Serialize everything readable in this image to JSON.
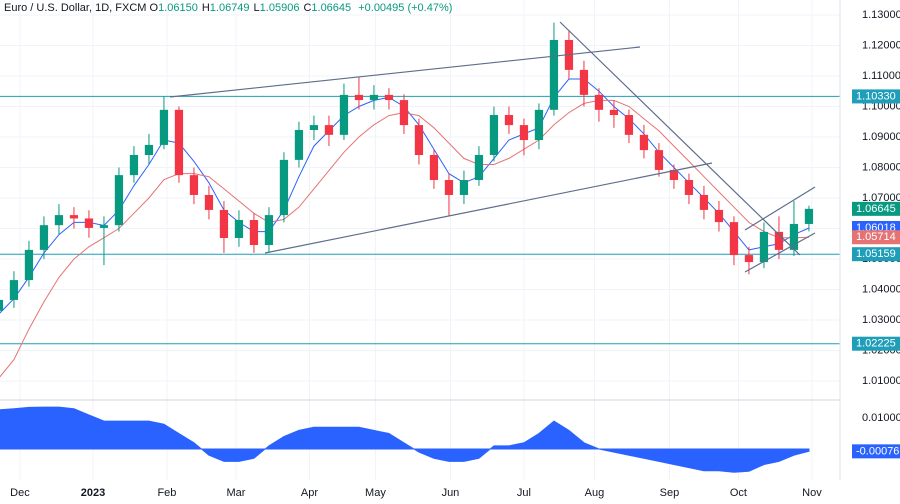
{
  "header": {
    "symbol": "Euro / U.S. Dollar, 1D, FXCM",
    "ohlc": [
      {
        "label": "O",
        "value": "1.06150"
      },
      {
        "label": "H",
        "value": "1.06749"
      },
      {
        "label": "L",
        "value": "1.05906"
      },
      {
        "label": "C",
        "value": "1.06645"
      }
    ],
    "change": "+0.00495 (+0.47%)"
  },
  "chart_data": {
    "type": "candlestick",
    "open": [
      1.033,
      1.0366,
      1.0431,
      1.053,
      1.0611,
      1.0644,
      1.0633,
      1.0602,
      1.0611,
      1.0775,
      1.0841,
      1.0874,
      1.0989,
      1.0775,
      1.071,
      1.0661,
      1.0569,
      1.0628,
      1.0546,
      1.0644,
      1.0825,
      1.0923,
      1.0939,
      1.0907,
      1.1038,
      1.1021,
      1.1038,
      1.1021,
      1.0939,
      1.0841,
      1.0759,
      1.071,
      1.0759,
      1.0841,
      1.0972,
      1.0939,
      1.089,
      1.0989,
      1.1218,
      1.112,
      1.1038,
      1.0989,
      1.0972,
      1.0907,
      1.0857,
      1.0792,
      1.0759,
      1.071,
      1.0661,
      1.0621,
      1.0513,
      1.049,
      1.0589,
      1.053,
      1.0615
    ],
    "high": [
      1.0395,
      1.046,
      1.056,
      1.064,
      1.068,
      1.067,
      1.066,
      1.064,
      1.08,
      1.087,
      1.091,
      1.1033,
      1.1,
      1.08,
      1.074,
      1.069,
      1.066,
      1.065,
      1.067,
      1.085,
      1.095,
      1.097,
      1.097,
      1.1075,
      1.1095,
      1.107,
      1.106,
      1.104,
      1.096,
      1.086,
      1.078,
      1.079,
      1.087,
      1.1,
      1.1,
      1.096,
      1.101,
      1.1275,
      1.125,
      1.115,
      1.106,
      1.102,
      1.099,
      1.094,
      1.088,
      1.081,
      1.078,
      1.074,
      1.069,
      1.064,
      1.054,
      1.062,
      1.064,
      1.069,
      1.06749
    ],
    "low": [
      1.03,
      1.034,
      1.041,
      1.05,
      1.058,
      1.06,
      1.057,
      1.048,
      1.059,
      1.075,
      1.081,
      1.086,
      1.075,
      1.068,
      1.063,
      1.052,
      1.054,
      1.052,
      1.052,
      1.062,
      1.08,
      1.089,
      1.087,
      1.089,
      1.099,
      1.099,
      1.099,
      1.091,
      1.081,
      1.073,
      1.064,
      1.068,
      1.074,
      1.082,
      1.091,
      1.084,
      1.086,
      1.097,
      1.109,
      1.1,
      1.095,
      1.093,
      1.088,
      1.083,
      1.077,
      1.073,
      1.068,
      1.063,
      1.059,
      1.048,
      1.045,
      1.047,
      1.05,
      1.051,
      1.05906
    ],
    "close": [
      1.0366,
      1.0431,
      1.053,
      1.0611,
      1.0644,
      1.0633,
      1.0602,
      1.0611,
      1.0775,
      1.0841,
      1.0874,
      1.0989,
      1.0775,
      1.071,
      1.0661,
      1.0569,
      1.0628,
      1.0546,
      1.0644,
      1.0825,
      1.0923,
      1.0939,
      1.0907,
      1.1038,
      1.1021,
      1.1038,
      1.1021,
      1.0939,
      1.0841,
      1.0759,
      1.071,
      1.0759,
      1.0841,
      1.0972,
      1.0939,
      1.089,
      1.0989,
      1.1218,
      1.112,
      1.1038,
      1.0989,
      1.0972,
      1.0907,
      1.0857,
      1.0792,
      1.0759,
      1.071,
      1.0661,
      1.0621,
      1.0513,
      1.049,
      1.0589,
      1.053,
      1.0615,
      1.06645
    ],
    "up_color": "#089981",
    "down_color": "#f23645",
    "ylim": [
      1.0038,
      1.1349
    ],
    "yticks": [
      {
        "value": 1.13,
        "label": "1.13000"
      },
      {
        "value": 1.12,
        "label": "1.12000"
      },
      {
        "value": 1.11,
        "label": "1.11000"
      },
      {
        "value": 1.1,
        "label": "1.10000"
      },
      {
        "value": 1.09,
        "label": "1.09000"
      },
      {
        "value": 1.08,
        "label": "1.08000"
      },
      {
        "value": 1.07,
        "label": "1.07000"
      },
      {
        "value": 1.06,
        "label": "1.06000"
      },
      {
        "value": 1.05,
        "label": "1.05000"
      },
      {
        "value": 1.04,
        "label": "1.04000"
      },
      {
        "value": 1.03,
        "label": "1.03000"
      },
      {
        "value": 1.02,
        "label": "1.02000"
      },
      {
        "value": 1.01,
        "label": "1.01000"
      }
    ],
    "xlim": [
      0.07,
      56.07
    ],
    "xticks": [
      {
        "value": 1.4,
        "label": "Dec"
      },
      {
        "value": 6.27,
        "label": "2023"
      },
      {
        "value": 11.2,
        "label": "Feb"
      },
      {
        "value": 15.8,
        "label": "Mar"
      },
      {
        "value": 20.7,
        "label": "Apr"
      },
      {
        "value": 25.1,
        "label": "May"
      },
      {
        "value": 30.1,
        "label": "Jun"
      },
      {
        "value": 35,
        "label": "Jul"
      },
      {
        "value": 39.7,
        "label": "Aug"
      },
      {
        "value": 44.7,
        "label": "Sep"
      },
      {
        "value": 49.3,
        "label": "Oct"
      },
      {
        "value": 54.2,
        "label": "Nov"
      }
    ],
    "moving_averages": [
      {
        "color": "#2962ff",
        "values": [
          1.032,
          1.037,
          1.044,
          1.052,
          1.058,
          1.062,
          1.062,
          1.061,
          1.066,
          1.074,
          1.081,
          1.089,
          1.088,
          1.082,
          1.075,
          1.066,
          1.062,
          1.059,
          1.059,
          1.066,
          1.077,
          1.087,
          1.092,
          1.097,
          1.1,
          1.102,
          1.103,
          1.1,
          1.094,
          1.086,
          1.078,
          1.075,
          1.077,
          1.083,
          1.089,
          1.091,
          1.093,
          1.103,
          1.109,
          1.109,
          1.105,
          1.1,
          1.096,
          1.091,
          1.085,
          1.08,
          1.075,
          1.07,
          1.065,
          1.059,
          1.053,
          1.054,
          1.055,
          1.058,
          1.06018
        ]
      },
      {
        "color": "#e57373",
        "values": [
          1.011,
          1.017,
          1.027,
          1.036,
          1.044,
          1.05,
          1.054,
          1.057,
          1.06,
          1.065,
          1.07,
          1.076,
          1.078,
          1.078,
          1.077,
          1.073,
          1.069,
          1.065,
          1.062,
          1.063,
          1.067,
          1.073,
          1.079,
          1.085,
          1.09,
          1.094,
          1.097,
          1.098,
          1.097,
          1.093,
          1.088,
          1.083,
          1.081,
          1.081,
          1.083,
          1.086,
          1.089,
          1.094,
          1.098,
          1.101,
          1.102,
          1.102,
          1.1,
          1.096,
          1.092,
          1.087,
          1.082,
          1.077,
          1.072,
          1.067,
          1.062,
          1.059,
          1.057,
          1.057,
          1.05714
        ]
      }
    ],
    "levels": [
      {
        "value": 1.1033,
        "label": "1.10330"
      },
      {
        "value": 1.05159,
        "label": "1.05159"
      },
      {
        "value": 1.02225,
        "label": "1.02225"
      }
    ],
    "level_color": "#1e9eb8",
    "oscillator": {
      "type": "area",
      "color": "#2962ff",
      "values": [
        0.0126,
        0.013,
        0.0134,
        0.0135,
        0.0135,
        0.013,
        0.011,
        0.009,
        0.009,
        0.009,
        0.009,
        0.008,
        0.005,
        0.002,
        -0.002,
        -0.004,
        -0.004,
        -0.003,
        0.001,
        0.004,
        0.006,
        0.007,
        0.007,
        0.007,
        0.007,
        0.006,
        0.005,
        0.002,
        -0.001,
        -0.003,
        -0.004,
        -0.004,
        -0.003,
        0.001,
        0.001,
        0.002,
        0.005,
        0.009,
        0.006,
        0.002,
        0.0,
        -0.001,
        -0.002,
        -0.003,
        -0.004,
        -0.005,
        -0.006,
        -0.007,
        -0.007,
        -0.0075,
        -0.0072,
        -0.005,
        -0.004,
        -0.002,
        -0.00076
      ],
      "ylim": [
        -0.01,
        0.0158
      ],
      "yticks": [
        {
          "value": 0.01,
          "label": "0.01000"
        }
      ]
    }
  }
}
